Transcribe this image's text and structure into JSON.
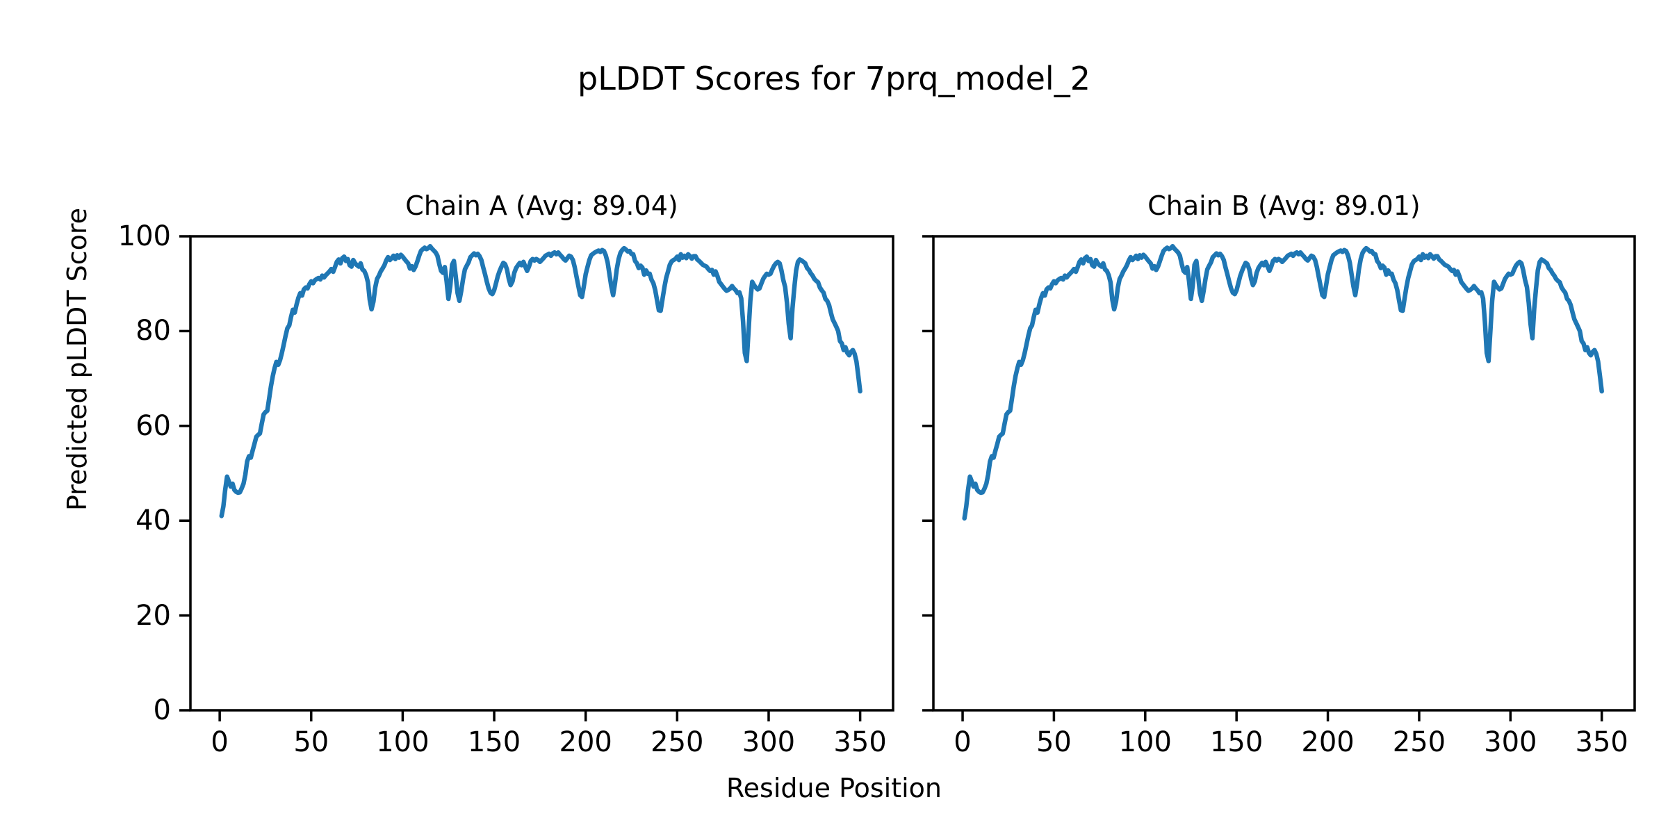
{
  "chart_data": {
    "type": "line",
    "suptitle": "pLDDT Scores for 7prq_model_2",
    "xlabel": "Residue Position",
    "ylabel": "Predicted pLDDT Score",
    "x_ticks": [
      0,
      50,
      100,
      150,
      200,
      250,
      300,
      350
    ],
    "y_ticks": [
      0,
      20,
      40,
      60,
      80,
      100
    ],
    "xlim": [
      -16,
      368
    ],
    "ylim": [
      0,
      100
    ],
    "grid": false,
    "legend": "none",
    "line_color": "#1f77b4",
    "text_color": "#000000",
    "x_start": 1,
    "x_step": 1,
    "subplots": [
      {
        "title": "Chain A (Avg: 89.04)",
        "chain": "A",
        "avg": 89.04,
        "y": [
          41.0,
          43.0,
          46.5,
          49.3,
          48.3,
          47.2,
          47.8,
          46.5,
          46.1,
          45.9,
          46.0,
          46.8,
          47.8,
          49.7,
          52.5,
          53.6,
          53.3,
          54.8,
          56.2,
          57.7,
          58.1,
          58.4,
          60.5,
          62.4,
          62.9,
          63.2,
          65.7,
          68.3,
          70.5,
          72.2,
          73.5,
          72.9,
          73.9,
          75.4,
          77.2,
          79.0,
          80.6,
          81.2,
          83.0,
          84.5,
          83.9,
          85.6,
          87.0,
          88.0,
          87.5,
          88.8,
          89.2,
          89.0,
          89.9,
          90.5,
          90.1,
          90.7,
          91.0,
          91.2,
          90.9,
          91.7,
          91.3,
          91.8,
          92.2,
          92.6,
          93.1,
          92.5,
          93.5,
          94.6,
          95.1,
          94.3,
          95.4,
          95.7,
          94.8,
          95.2,
          93.9,
          93.6,
          95.0,
          94.3,
          93.9,
          93.6,
          94.3,
          93.0,
          92.7,
          91.8,
          90.3,
          86.6,
          84.6,
          86.2,
          89.2,
          91.0,
          91.7,
          92.6,
          93.2,
          93.9,
          94.9,
          95.6,
          95.0,
          95.4,
          95.9,
          95.2,
          96.0,
          95.5,
          96.1,
          95.7,
          95.2,
          94.7,
          94.3,
          93.2,
          93.7,
          92.9,
          93.6,
          94.7,
          95.9,
          96.9,
          97.3,
          97.6,
          97.3,
          97.5,
          97.9,
          97.4,
          97.0,
          96.6,
          95.9,
          94.1,
          92.7,
          92.3,
          93.5,
          90.5,
          86.8,
          89.5,
          94.0,
          94.8,
          91.5,
          88.0,
          86.4,
          88.5,
          91.0,
          93.0,
          93.8,
          94.5,
          95.6,
          96.0,
          96.4,
          96.0,
          96.3,
          95.8,
          95.0,
          93.4,
          92.0,
          90.4,
          89.0,
          88.1,
          87.8,
          88.6,
          90.1,
          91.6,
          92.7,
          93.6,
          94.4,
          94.1,
          93.0,
          91.0,
          89.7,
          90.5,
          92.3,
          93.3,
          93.9,
          94.4,
          93.9,
          94.6,
          93.6,
          92.7,
          93.6,
          94.8,
          95.2,
          94.9,
          95.2,
          95.0,
          94.6,
          95.0,
          95.4,
          95.9,
          96.1,
          96.3,
          95.9,
          96.4,
          96.6,
          96.2,
          96.6,
          96.1,
          95.7,
          95.2,
          94.9,
          95.4,
          95.9,
          95.7,
          95.0,
          93.5,
          91.5,
          89.5,
          87.6,
          87.2,
          89.5,
          92.0,
          93.5,
          95.0,
          96.0,
          96.3,
          96.6,
          96.8,
          97.0,
          96.7,
          97.1,
          96.9,
          96.0,
          94.5,
          92.0,
          89.5,
          87.6,
          90.0,
          93.0,
          95.2,
          96.5,
          97.1,
          97.5,
          97.2,
          96.8,
          96.9,
          96.3,
          96.2,
          94.8,
          94.3,
          93.3,
          93.8,
          93.4,
          91.9,
          92.8,
          92.1,
          92.1,
          90.8,
          90.1,
          88.7,
          86.5,
          84.4,
          84.3,
          86.8,
          89.2,
          91.2,
          92.6,
          94.0,
          94.7,
          95.0,
          95.2,
          95.7,
          95.0,
          96.2,
          95.5,
          95.9,
          95.4,
          96.2,
          95.8,
          95.3,
          95.8,
          95.8,
          95.1,
          94.8,
          94.4,
          94.0,
          93.8,
          93.6,
          93.1,
          92.7,
          92.9,
          91.9,
          92.6,
          91.6,
          90.4,
          89.9,
          89.4,
          88.9,
          88.5,
          88.7,
          89.0,
          89.5,
          89.0,
          88.6,
          88.0,
          88.2,
          86.9,
          82.1,
          75.4,
          73.7,
          79.9,
          86.4,
          90.4,
          89.7,
          89.2,
          88.8,
          89.0,
          90.0,
          91.0,
          91.6,
          92.1,
          91.9,
          92.1,
          93.0,
          93.8,
          94.3,
          94.6,
          94.3,
          92.8,
          90.8,
          89.3,
          86.0,
          81.5,
          78.5,
          84.7,
          89.0,
          92.8,
          94.6,
          95.1,
          94.9,
          94.6,
          94.3,
          93.3,
          92.9,
          92.2,
          91.7,
          91.0,
          90.6,
          90.3,
          89.2,
          88.6,
          88.1,
          86.8,
          86.4,
          85.5,
          83.9,
          82.5,
          81.7,
          80.9,
          80.0,
          77.9,
          77.4,
          76.0,
          76.6,
          75.4,
          74.9,
          75.6,
          76.0,
          75.2,
          73.6,
          70.5,
          67.3
        ]
      },
      {
        "title": "Chain B (Avg: 89.01)",
        "chain": "B",
        "avg": 89.01,
        "y": [
          40.5,
          43.0,
          46.5,
          49.3,
          48.3,
          47.2,
          47.8,
          46.5,
          46.1,
          45.9,
          46.0,
          46.8,
          47.8,
          49.7,
          52.5,
          53.6,
          53.3,
          54.8,
          56.2,
          57.7,
          58.1,
          58.4,
          60.5,
          62.4,
          62.9,
          63.2,
          65.7,
          68.3,
          70.5,
          72.2,
          73.5,
          72.9,
          73.9,
          75.4,
          77.2,
          79.0,
          80.6,
          81.2,
          83.0,
          84.5,
          83.9,
          85.6,
          87.0,
          88.0,
          87.5,
          88.8,
          89.2,
          89.0,
          89.9,
          90.5,
          90.1,
          90.7,
          91.0,
          91.2,
          90.9,
          91.7,
          91.3,
          91.8,
          92.2,
          92.6,
          93.1,
          92.5,
          93.5,
          94.6,
          95.1,
          94.3,
          95.4,
          95.7,
          94.8,
          95.2,
          93.9,
          93.6,
          95.0,
          94.3,
          93.9,
          93.6,
          94.3,
          93.0,
          92.7,
          91.8,
          90.3,
          86.6,
          84.6,
          86.2,
          89.2,
          91.0,
          91.7,
          92.6,
          93.2,
          93.9,
          94.9,
          95.6,
          95.0,
          95.4,
          95.9,
          95.2,
          96.0,
          95.5,
          96.1,
          95.7,
          95.2,
          94.7,
          94.3,
          93.2,
          93.7,
          92.9,
          93.6,
          94.7,
          95.9,
          96.9,
          97.3,
          97.6,
          97.3,
          97.5,
          97.9,
          97.4,
          97.0,
          96.6,
          95.9,
          94.1,
          92.7,
          92.3,
          93.5,
          90.5,
          86.8,
          89.5,
          94.0,
          94.8,
          91.5,
          88.0,
          86.4,
          88.5,
          91.0,
          93.0,
          93.8,
          94.5,
          95.6,
          96.0,
          96.4,
          96.0,
          96.3,
          95.8,
          95.0,
          93.4,
          92.0,
          90.4,
          89.0,
          88.1,
          87.8,
          88.6,
          90.1,
          91.6,
          92.7,
          93.6,
          94.4,
          94.1,
          93.0,
          91.0,
          89.7,
          90.5,
          92.3,
          93.3,
          93.9,
          94.4,
          93.9,
          94.6,
          93.6,
          92.7,
          93.6,
          94.8,
          95.2,
          94.9,
          95.2,
          95.0,
          94.6,
          95.0,
          95.4,
          95.9,
          96.1,
          96.3,
          95.9,
          96.4,
          96.6,
          96.2,
          96.6,
          96.1,
          95.7,
          95.2,
          94.9,
          95.4,
          95.9,
          95.7,
          95.0,
          93.5,
          91.5,
          89.5,
          87.6,
          87.2,
          89.5,
          92.0,
          93.5,
          95.0,
          96.0,
          96.3,
          96.6,
          96.8,
          97.0,
          96.7,
          97.1,
          96.9,
          96.0,
          94.5,
          92.0,
          89.5,
          87.6,
          90.0,
          93.0,
          95.2,
          96.5,
          97.1,
          97.5,
          97.2,
          96.8,
          96.9,
          96.3,
          96.2,
          94.8,
          94.3,
          93.3,
          93.8,
          93.4,
          91.9,
          92.8,
          92.1,
          92.1,
          90.8,
          90.1,
          88.7,
          86.5,
          84.4,
          84.3,
          86.8,
          89.2,
          91.2,
          92.6,
          94.0,
          94.7,
          95.0,
          95.2,
          95.7,
          95.0,
          96.2,
          95.5,
          95.9,
          95.4,
          96.2,
          95.8,
          95.3,
          95.8,
          95.8,
          95.1,
          94.8,
          94.4,
          94.0,
          93.8,
          93.6,
          93.1,
          92.7,
          92.9,
          91.9,
          92.6,
          91.6,
          90.4,
          89.9,
          89.4,
          88.9,
          88.5,
          88.7,
          89.0,
          89.5,
          89.0,
          88.6,
          88.0,
          88.2,
          86.9,
          82.1,
          75.4,
          73.7,
          79.9,
          86.4,
          90.4,
          89.7,
          89.2,
          88.8,
          89.0,
          90.0,
          91.0,
          91.6,
          92.1,
          91.9,
          92.1,
          93.0,
          93.8,
          94.3,
          94.6,
          94.3,
          92.8,
          90.8,
          89.3,
          86.0,
          81.5,
          78.5,
          84.7,
          89.0,
          92.8,
          94.6,
          95.1,
          94.9,
          94.6,
          94.3,
          93.3,
          92.9,
          92.2,
          91.7,
          91.0,
          90.6,
          90.3,
          89.2,
          88.6,
          88.1,
          86.8,
          86.4,
          85.5,
          83.9,
          82.5,
          81.7,
          80.9,
          80.0,
          77.9,
          77.4,
          76.0,
          76.6,
          75.4,
          74.9,
          75.6,
          76.0,
          75.2,
          73.6,
          70.5,
          67.3
        ]
      }
    ]
  }
}
